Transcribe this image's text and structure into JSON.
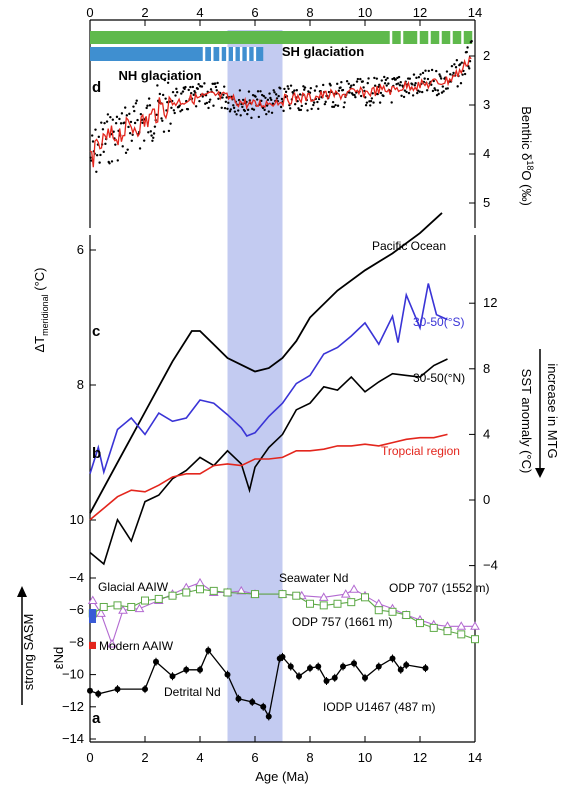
{
  "figure": {
    "x_axis": {
      "label": "Age (Ma)",
      "ticks": [
        "0",
        "2",
        "4",
        "6",
        "8",
        "10",
        "12",
        "14"
      ]
    },
    "highlight_band": {
      "from_ma": 5.0,
      "to_ma": 7.0,
      "color": "#b9c2ef"
    },
    "colors": {
      "black": "#000000",
      "red": "#e3261d",
      "blue": "#3a34d6",
      "green_bar": "#5fb94c",
      "blue_bar": "#3f8fd0",
      "purple": "#b36ad1",
      "green_line": "#5faa48",
      "modern_aaiw": "#e3261d",
      "glacial_aaiw": "#3a5bd6"
    }
  },
  "panels": {
    "d": {
      "letter": "d",
      "ylabel": "Benthic δ18O (‰)",
      "ylabel_main": "Benthic δ",
      "ylabel_sup": "18",
      "ylabel_end": "O (‰)",
      "ticks": [
        "2",
        "3",
        "4",
        "5"
      ],
      "sh_label": "SH glaciation",
      "nh_label": "NH glaciation"
    },
    "c": {
      "letter": "c",
      "ylabel_main": "ΔT",
      "ylabel_sub": "meridional",
      "ylabel_end": " (°C)",
      "ticks": [
        "6",
        "8",
        "10"
      ],
      "series_label": "Pacific Ocean"
    },
    "b": {
      "letter": "b",
      "ylabel": "SST anomaly (°C)",
      "ylabel2": "increase in MTG",
      "ticks": [
        "12",
        "8",
        "4",
        "0",
        "−4"
      ],
      "labels": {
        "south": "30-50(°S)",
        "north": "30-50(°N)",
        "tropical": "Tropcial region"
      }
    },
    "a": {
      "letter": "a",
      "ylabel": "εNd",
      "ylabel2": "strong SASM",
      "ticks": [
        "−4",
        "−6",
        "−8",
        "−10",
        "−12",
        "−14"
      ],
      "labels": {
        "glacial": "Glacial AAIW",
        "modern": "Modern AAIW",
        "seawater": "Seawater Nd",
        "odp707": "ODP 707 (1552 m)",
        "odp757": "ODP 757 (1661 m)",
        "detrital": "Detrital Nd",
        "iodp": "IODP U1467 (487 m)"
      }
    }
  },
  "chart_data": [
    {
      "panel": "d",
      "type": "scatter",
      "xlabel": "Age (Ma)",
      "ylabel": "Benthic δ18O (‰)",
      "xlim": [
        0,
        14
      ],
      "ylim": [
        5.5,
        1.5
      ],
      "series": [
        {
          "x": [
            0,
            0.3,
            0.6,
            1,
            1.5,
            2,
            2.5,
            3,
            3.5,
            4,
            4.5,
            5,
            5.5,
            6,
            6.5,
            7,
            7.5,
            8,
            8.5,
            9,
            9.5,
            10,
            10.5,
            11,
            11.5,
            12,
            12.5,
            13,
            13.5,
            13.9
          ],
          "values": [
            4.1,
            3.9,
            3.7,
            3.6,
            3.45,
            3.35,
            3.1,
            2.95,
            2.9,
            2.85,
            2.8,
            2.85,
            2.95,
            3.0,
            2.95,
            2.9,
            2.85,
            2.85,
            2.8,
            2.8,
            2.75,
            2.75,
            2.7,
            2.7,
            2.6,
            2.6,
            2.55,
            2.5,
            2.3,
            1.95
          ]
        }
      ]
    },
    {
      "panel": "c",
      "type": "line",
      "xlim": [
        0,
        14
      ],
      "ylim": [
        5.5,
        11
      ],
      "series": [
        {
          "name": "Pacific Ocean",
          "x": [
            0,
            1,
            2,
            3,
            3.7,
            4,
            4.5,
            5,
            5.5,
            6,
            6.5,
            7,
            7.5,
            8,
            9,
            10,
            11,
            12,
            12.8
          ],
          "values": [
            9.9,
            9.15,
            8.4,
            7.65,
            7.2,
            7.2,
            7.4,
            7.6,
            7.7,
            7.8,
            7.75,
            7.6,
            7.35,
            7.0,
            6.6,
            6.3,
            6.05,
            5.75,
            5.45
          ]
        }
      ]
    },
    {
      "panel": "b",
      "type": "line",
      "xlim": [
        0,
        14
      ],
      "ylim": [
        -5,
        15.5
      ],
      "series": [
        {
          "name": "30-50(°S)",
          "x": [
            0,
            0.3,
            0.5,
            1,
            1.5,
            2,
            2.5,
            3,
            3.5,
            4,
            4.5,
            5,
            5.5,
            5.7,
            6,
            6.5,
            7,
            7.5,
            8,
            8.5,
            9,
            9.5,
            10,
            10.5,
            11,
            11.2,
            11.5,
            12,
            12.3,
            12.6,
            13
          ],
          "values": [
            1.6,
            3.2,
            1.7,
            4.3,
            5.0,
            4.0,
            5.3,
            4.8,
            5.0,
            6.1,
            5.9,
            5.2,
            4.4,
            3.9,
            4.1,
            5.1,
            5.9,
            7.1,
            7.6,
            8.9,
            9.3,
            10.0,
            10.8,
            9.5,
            11.2,
            9.6,
            12.5,
            10.5,
            13.2,
            11.3,
            11.0
          ]
        },
        {
          "name": "30-50(°N)",
          "x": [
            0,
            0.5,
            1,
            1.5,
            2,
            2.5,
            3,
            3.5,
            4,
            4.5,
            5,
            5.5,
            5.8,
            6,
            6.5,
            7,
            7.5,
            8,
            8.5,
            9,
            9.5,
            10,
            10.5,
            11,
            11.5,
            12,
            12.5,
            13
          ],
          "values": [
            -3.2,
            -3.9,
            -1.2,
            -2.5,
            -0.1,
            0.3,
            1.3,
            1.8,
            2.6,
            2.1,
            3.0,
            2.2,
            0.6,
            2.0,
            3.2,
            4.0,
            5.5,
            5.9,
            6.9,
            6.7,
            7.5,
            6.6,
            7.2,
            7.7,
            7.6,
            7.5,
            8.2,
            8.6
          ]
        },
        {
          "name": "Tropcial region",
          "x": [
            0,
            0.5,
            1,
            1.5,
            2,
            2.5,
            3,
            3.5,
            4,
            4.5,
            5,
            5.5,
            6,
            6.5,
            7,
            7.5,
            8,
            8.5,
            9,
            9.5,
            10,
            10.5,
            11,
            11.5,
            12,
            12.5,
            13
          ],
          "values": [
            -1.2,
            -0.5,
            0.2,
            0.6,
            0.5,
            0.9,
            1.4,
            1.6,
            1.6,
            2.1,
            2.2,
            2.1,
            2.5,
            2.5,
            2.6,
            3.0,
            3.0,
            3.1,
            3.3,
            3.3,
            3.4,
            3.3,
            3.5,
            3.7,
            3.8,
            3.8,
            4.0
          ]
        }
      ]
    },
    {
      "panel": "a",
      "type": "line",
      "xlim": [
        0,
        14
      ],
      "ylim": [
        -14,
        -3.5
      ],
      "series": [
        {
          "name": "ODP 707 (1552 m)",
          "x": [
            0.1,
            0.4,
            0.8,
            1.2,
            1.8,
            2.5,
            3.0,
            3.5,
            4.0,
            4.5,
            5.0,
            5.5,
            6.0,
            7.0,
            7.7,
            8.5,
            9.3,
            9.6,
            10.0,
            10.5,
            11.0,
            11.5,
            12.0,
            12.5,
            13.0,
            13.5,
            14.0
          ],
          "values": [
            -5.4,
            -6.2,
            -8.1,
            -6.0,
            -5.9,
            -5.4,
            -5.0,
            -4.6,
            -4.3,
            -4.9,
            -4.9,
            -4.8,
            -5.0,
            -5.0,
            -5.1,
            -5.2,
            -5.0,
            -4.7,
            -5.1,
            -5.6,
            -5.9,
            -6.3,
            -6.6,
            -6.9,
            -7.0,
            -7.0,
            -7.0
          ]
        },
        {
          "name": "ODP 757 (1661 m)",
          "x": [
            0.1,
            0.5,
            1.0,
            1.5,
            2.0,
            2.5,
            3.0,
            3.5,
            4.0,
            4.5,
            5.0,
            6.0,
            7.0,
            7.5,
            8.0,
            8.5,
            9.0,
            9.5,
            10.0,
            10.5,
            11.0,
            11.5,
            12.0,
            12.5,
            13.0,
            13.5,
            14.0
          ],
          "values": [
            -6.2,
            -5.8,
            -5.7,
            -5.8,
            -5.4,
            -5.3,
            -5.1,
            -4.9,
            -4.7,
            -4.8,
            -4.9,
            -5.0,
            -5.0,
            -5.1,
            -5.6,
            -5.7,
            -5.6,
            -5.5,
            -5.2,
            -6.0,
            -6.1,
            -6.3,
            -6.8,
            -7.1,
            -7.3,
            -7.5,
            -7.8
          ]
        },
        {
          "name": "IODP U1467 (487 m)",
          "x": [
            0,
            0.3,
            1.0,
            2.0,
            2.4,
            3.0,
            3.5,
            4.0,
            4.3,
            5.0,
            5.4,
            5.9,
            6.3,
            6.5,
            6.9,
            7.0,
            7.3,
            7.6,
            8.0,
            8.3,
            8.6,
            8.9,
            9.2,
            9.6,
            10.0,
            10.5,
            11.0,
            11.3,
            11.5,
            12.2
          ],
          "values": [
            -11.0,
            -11.2,
            -10.9,
            -10.9,
            -9.2,
            -10.1,
            -9.7,
            -9.7,
            -8.5,
            -10.0,
            -11.5,
            -11.7,
            -12.0,
            -12.6,
            -9.0,
            -8.9,
            -9.5,
            -10.1,
            -9.6,
            -9.5,
            -10.4,
            -10.2,
            -9.5,
            -9.3,
            -10.2,
            -9.5,
            -9.0,
            -9.7,
            -9.4,
            -9.6
          ]
        }
      ]
    }
  ]
}
